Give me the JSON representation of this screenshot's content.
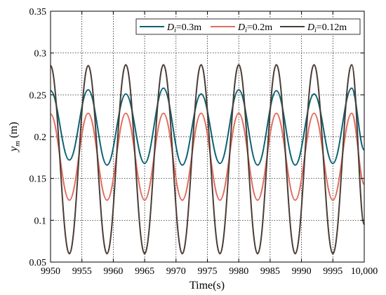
{
  "chart_data": {
    "type": "line",
    "xlabel": "Time(s)",
    "ylabel_main": "y",
    "ylabel_sub": "m",
    "ylabel_unit": " (m)",
    "xlim": [
      9950,
      10000
    ],
    "ylim": [
      0.05,
      0.35
    ],
    "x_ticks": [
      9950,
      9955,
      9960,
      9965,
      9970,
      9975,
      9980,
      9985,
      9990,
      9995,
      10000
    ],
    "x_tick_labels": [
      "9950",
      "9955",
      "9960",
      "9965",
      "9970",
      "9975",
      "9980",
      "9985",
      "9990",
      "9995",
      "10,000"
    ],
    "y_ticks": [
      0.05,
      0.1,
      0.15,
      0.2,
      0.25,
      0.3,
      0.35
    ],
    "y_tick_labels": [
      "0.05",
      "0.1",
      "0.15",
      "0.2",
      "0.25",
      "0.3",
      "0.35"
    ],
    "grid": true,
    "legend_position": "top-right",
    "series": [
      {
        "label_main": "D",
        "label_sub": "i",
        "label_rest": "=0.3m",
        "color": "#0b6272",
        "x": [
          9950,
          9953,
          9956,
          9959,
          9962,
          9965,
          9968,
          9971,
          9974,
          9977,
          9980,
          9983,
          9986,
          9989,
          9992,
          9995,
          9998,
          10000
        ],
        "y": [
          0.255,
          0.172,
          0.256,
          0.166,
          0.251,
          0.168,
          0.258,
          0.166,
          0.251,
          0.168,
          0.256,
          0.166,
          0.255,
          0.166,
          0.251,
          0.168,
          0.258,
          0.184
        ]
      },
      {
        "label_main": "D",
        "label_sub": "i",
        "label_rest": "=0.2m",
        "color": "#e06c5c",
        "x": [
          9950,
          9953,
          9956,
          9959,
          9962,
          9965,
          9968,
          9971,
          9974,
          9977,
          9980,
          9983,
          9986,
          9989,
          9992,
          9995,
          9998,
          10000
        ],
        "y": [
          0.227,
          0.124,
          0.228,
          0.124,
          0.228,
          0.124,
          0.228,
          0.124,
          0.228,
          0.124,
          0.228,
          0.124,
          0.228,
          0.124,
          0.228,
          0.124,
          0.228,
          0.143
        ]
      },
      {
        "label_main": "D",
        "label_sub": "i",
        "label_rest": "=0.12m",
        "color": "#4a3c36",
        "x": [
          9950,
          9953,
          9956,
          9959,
          9962,
          9965,
          9968,
          9971,
          9974,
          9977,
          9980,
          9983,
          9986,
          9989,
          9992,
          9995,
          9998,
          10000
        ],
        "y": [
          0.285,
          0.06,
          0.285,
          0.06,
          0.286,
          0.06,
          0.286,
          0.06,
          0.286,
          0.06,
          0.286,
          0.06,
          0.286,
          0.06,
          0.286,
          0.06,
          0.286,
          0.095
        ]
      }
    ]
  }
}
